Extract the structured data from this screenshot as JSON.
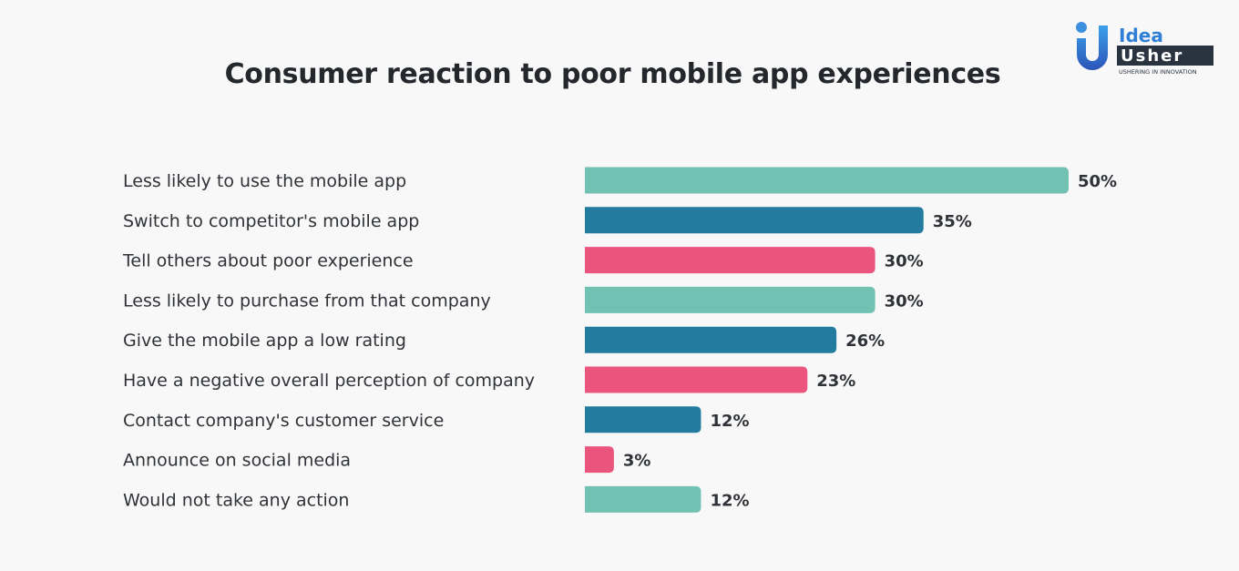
{
  "logo": {
    "word1": "Idea",
    "word2": "Usher",
    "tagline": "USHERING IN INNOVATION"
  },
  "chart_data": {
    "type": "bar",
    "orientation": "horizontal",
    "title": "Consumer reaction to poor mobile app experiences",
    "categories": [
      "Less likely to use the mobile app",
      "Switch to competitor's mobile app",
      "Tell others about poor experience",
      "Less likely to purchase from that company",
      "Give the mobile app a low rating",
      "Have a negative overall perception of company",
      "Contact company's customer service",
      "Announce on social media",
      "Would not take any action"
    ],
    "values": [
      50,
      35,
      30,
      30,
      26,
      23,
      12,
      3,
      12
    ],
    "value_labels": [
      "50%",
      "35%",
      "30%",
      "30%",
      "26%",
      "23%",
      "12%",
      "3%",
      "12%"
    ],
    "bar_colors": [
      "#72c2b4",
      "#237b9f",
      "#eb557d",
      "#72c2b4",
      "#237b9f",
      "#eb557d",
      "#237b9f",
      "#eb557d",
      "#72c2b4"
    ],
    "xlim": [
      0,
      50
    ],
    "grid": false,
    "legend": "none"
  }
}
